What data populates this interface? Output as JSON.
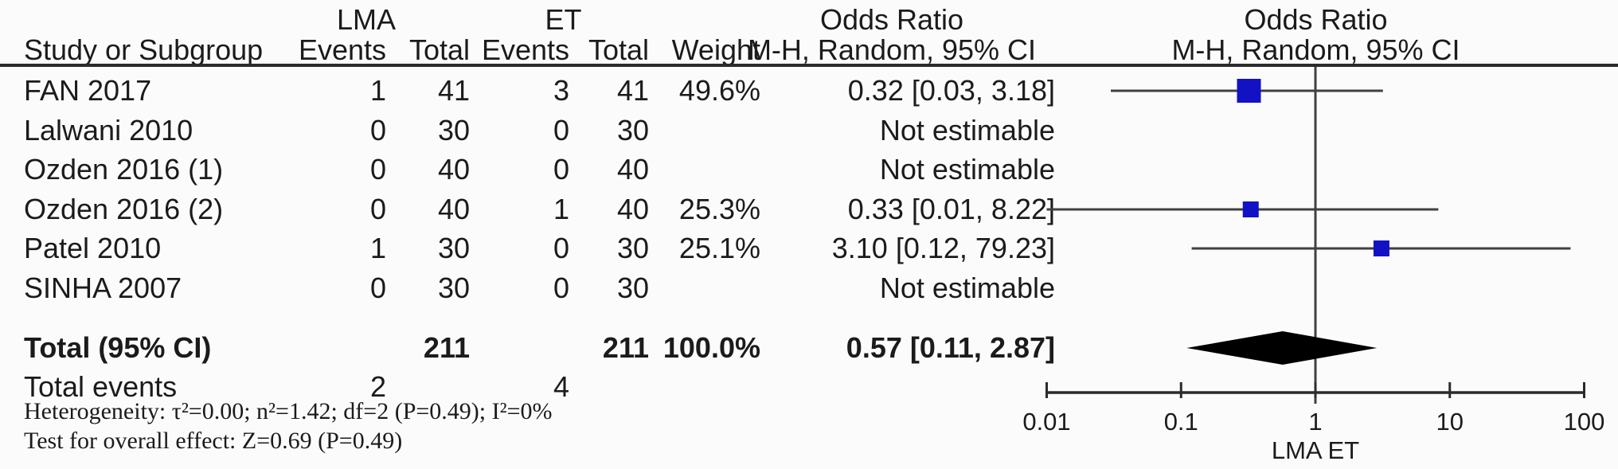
{
  "header": {
    "group1": "LMA",
    "group2": "ET",
    "study_col": "Study or Subgroup",
    "events_col": "Events",
    "total_col": "Total",
    "weight_col": "Weight",
    "or_col_title": "Odds Ratio",
    "or_col_subtitle": "M-H, Random, 95% CI",
    "plot_col_title": "Odds Ratio",
    "plot_col_subtitle": "M-H, Random, 95% CI"
  },
  "chart_data": {
    "type": "scatter",
    "subtype": "forest-plot-meta-analysis",
    "effect_measure": "Odds Ratio, M-H, Random, 95% CI",
    "x_scale": "log10",
    "xlim": [
      0.01,
      100
    ],
    "x_tick_values": [
      0.01,
      0.1,
      1,
      10,
      100
    ],
    "x_tick_labels": [
      "0.01",
      "0.1",
      "1",
      "10",
      "100"
    ],
    "x_label_left": "LMA",
    "x_label_right": "ET",
    "studies": [
      {
        "name": "FAN 2017",
        "lma_events": 1,
        "lma_total": 41,
        "et_events": 3,
        "et_total": 41,
        "weight": "49.6%",
        "or_text": "0.32 [0.03, 3.18]",
        "or": 0.32,
        "ci_low": 0.03,
        "ci_high": 3.18,
        "estimable": true
      },
      {
        "name": "Lalwani 2010",
        "lma_events": 0,
        "lma_total": 30,
        "et_events": 0,
        "et_total": 30,
        "weight": "",
        "or_text": "Not estimable",
        "estimable": false
      },
      {
        "name": "Ozden 2016 (1)",
        "lma_events": 0,
        "lma_total": 40,
        "et_events": 0,
        "et_total": 40,
        "weight": "",
        "or_text": "Not estimable",
        "estimable": false
      },
      {
        "name": "Ozden 2016 (2)",
        "lma_events": 0,
        "lma_total": 40,
        "et_events": 1,
        "et_total": 40,
        "weight": "25.3%",
        "or_text": "0.33 [0.01, 8.22]",
        "or": 0.33,
        "ci_low": 0.01,
        "ci_high": 8.22,
        "estimable": true
      },
      {
        "name": "Patel 2010",
        "lma_events": 1,
        "lma_total": 30,
        "et_events": 0,
        "et_total": 30,
        "weight": "25.1%",
        "or_text": "3.10 [0.12, 79.23]",
        "or": 3.1,
        "ci_low": 0.12,
        "ci_high": 79.23,
        "estimable": true
      },
      {
        "name": "SINHA 2007",
        "lma_events": 0,
        "lma_total": 30,
        "et_events": 0,
        "et_total": 30,
        "weight": "",
        "or_text": "Not estimable",
        "estimable": false
      }
    ],
    "total": {
      "label": "Total (95% CI)",
      "lma_total": 211,
      "et_total": 211,
      "weight": "100.0%",
      "or_text": "0.57 [0.11, 2.87]",
      "or": 0.57,
      "ci_low": 0.11,
      "ci_high": 2.87
    },
    "total_events": {
      "label": "Total events",
      "lma_events": 2,
      "et_events": 4
    },
    "footnotes": {
      "heterogeneity": "Heterogeneity: τ²=0.00; n²=1.42; df=2 (P=0.49); I²=0%",
      "overall_effect": "Test for overall effect: Z=0.69 (P=0.49)"
    },
    "colors": {
      "square": "#1212c4",
      "diamond": "#000000",
      "line": "#404040",
      "axis": "#2b2b2b"
    }
  }
}
